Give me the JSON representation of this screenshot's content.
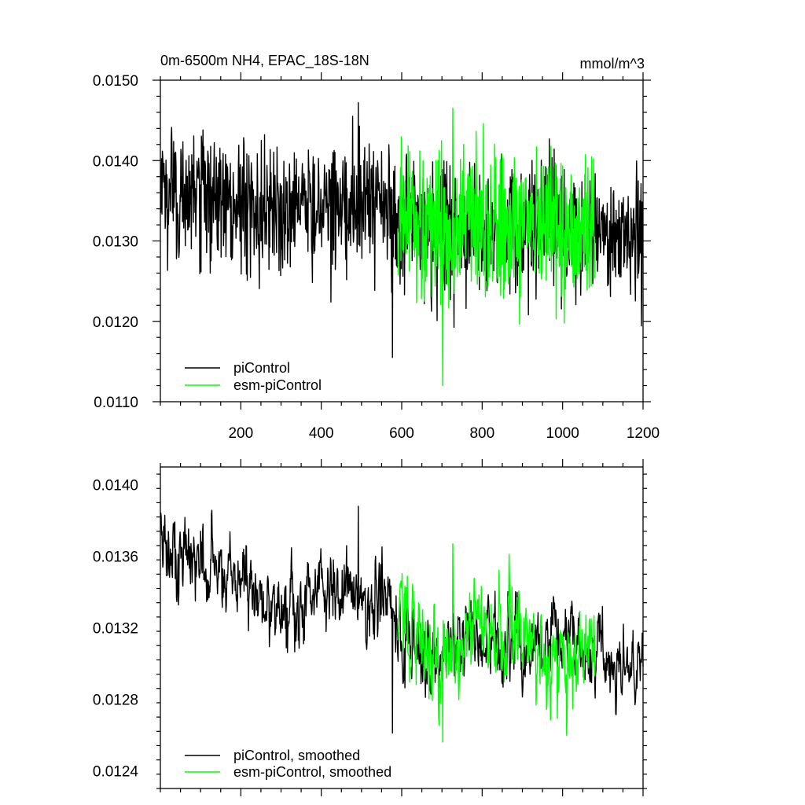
{
  "chart_data": [
    {
      "type": "line",
      "title": "0m-6500m NH4, EPAC_18S-18N",
      "units": "mmol/m^3",
      "xlim": [
        0,
        1200
      ],
      "ylim": [
        0.011,
        0.015
      ],
      "x_ticks": [
        200,
        400,
        600,
        800,
        1000,
        1200
      ],
      "x_tick_labels": [
        "200",
        "400",
        "600",
        "800",
        "1000",
        "1200"
      ],
      "y_ticks": [
        0.011,
        0.012,
        0.013,
        0.014,
        0.015
      ],
      "y_tick_labels": [
        "0.0110",
        "0.0120",
        "0.0130",
        "0.0140",
        "0.0150"
      ],
      "legend_position": "bottom-left",
      "series": [
        {
          "name": "piControl",
          "color": "#000000",
          "x_range": [
            1,
            1200
          ],
          "n_points": 1200,
          "x_anchor": [
            0,
            50,
            100,
            150,
            200,
            250,
            300,
            350,
            400,
            450,
            500,
            550,
            600,
            650,
            700,
            750,
            800,
            850,
            900,
            950,
            1000,
            1050,
            1100,
            1150,
            1200
          ],
          "mean_anchor": [
            0.01355,
            0.0136,
            0.01352,
            0.0135,
            0.01348,
            0.01345,
            0.0134,
            0.01342,
            0.0135,
            0.01345,
            0.01348,
            0.01342,
            0.0132,
            0.01318,
            0.01315,
            0.0132,
            0.01312,
            0.0131,
            0.01312,
            0.0131,
            0.01315,
            0.01312,
            0.01308,
            0.01305,
            0.01305
          ],
          "spread": 0.00045,
          "y_max": 0.01472,
          "y_min": 0.01155
        },
        {
          "name": "esm-piControl",
          "color": "#00ff00",
          "x_range": [
            590,
            1080
          ],
          "n_points": 491,
          "x_anchor": [
            590,
            650,
            700,
            750,
            800,
            850,
            900,
            950,
            1000,
            1050,
            1080
          ],
          "mean_anchor": [
            0.0133,
            0.0132,
            0.01315,
            0.01318,
            0.0132,
            0.01312,
            0.01315,
            0.0131,
            0.01312,
            0.01315,
            0.01315
          ],
          "spread": 0.0005,
          "y_max": 0.01465,
          "y_min": 0.0112
        }
      ]
    },
    {
      "type": "line",
      "xlim": [
        0,
        1200
      ],
      "ylim": [
        0.0123,
        0.0141
      ],
      "y_ticks": [
        0.0124,
        0.0128,
        0.0132,
        0.0136,
        0.014
      ],
      "y_tick_labels": [
        "0.0124",
        "0.0128",
        "0.0132",
        "0.0136",
        "0.0140"
      ],
      "legend_position": "bottom-left",
      "series": [
        {
          "name": "piControl, smoothed",
          "color": "#000000",
          "x_range": [
            1,
            1200
          ],
          "n_points": 1200,
          "x_anchor": [
            0,
            50,
            100,
            150,
            200,
            250,
            300,
            350,
            400,
            450,
            500,
            550,
            600,
            650,
            700,
            750,
            800,
            850,
            900,
            950,
            1000,
            1050,
            1100,
            1150,
            1200
          ],
          "mean_anchor": [
            0.0136,
            0.01362,
            0.01358,
            0.01352,
            0.01345,
            0.01338,
            0.01328,
            0.01335,
            0.0135,
            0.01342,
            0.0134,
            0.01335,
            0.01315,
            0.01305,
            0.01305,
            0.01318,
            0.01312,
            0.01308,
            0.0131,
            0.01305,
            0.01315,
            0.01312,
            0.0131,
            0.013,
            0.013
          ],
          "spread": 0.00013,
          "y_max": 0.01388,
          "y_min": 0.01261
        },
        {
          "name": "esm-piControl, smoothed",
          "color": "#00ff00",
          "x_range": [
            590,
            1080
          ],
          "n_points": 491,
          "x_anchor": [
            590,
            650,
            700,
            750,
            800,
            850,
            900,
            950,
            1000,
            1050,
            1080
          ],
          "mean_anchor": [
            0.01335,
            0.01315,
            0.013,
            0.01312,
            0.01318,
            0.0131,
            0.0132,
            0.01305,
            0.01308,
            0.01312,
            0.0132
          ],
          "spread": 0.00015,
          "y_max": 0.01367,
          "y_min": 0.01256
        }
      ]
    }
  ]
}
